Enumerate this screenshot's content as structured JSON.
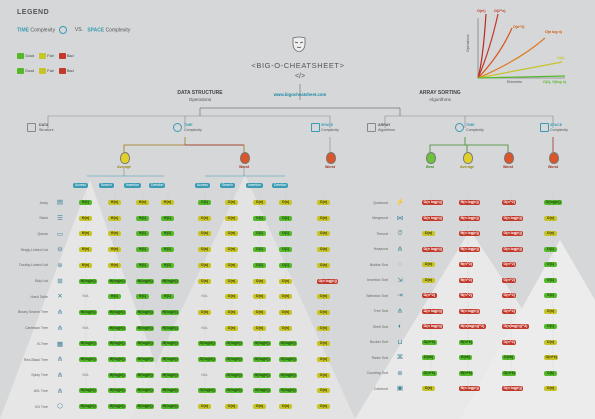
{
  "legend": {
    "title": "LEGEND",
    "time_word": "TIME",
    "time_rest": "Complexity",
    "vs": "VS.",
    "space_word": "SPACE",
    "space_rest": "Complexity",
    "row1": [
      {
        "label": "Good",
        "color": "#55b82b"
      },
      {
        "label": "Fair",
        "color": "#c7c42a"
      },
      {
        "label": "Bad",
        "color": "#c0392b"
      }
    ],
    "row2": [
      {
        "label": "Good",
        "color": "#55b82b"
      },
      {
        "label": "Fair",
        "color": "#c7c42a"
      },
      {
        "label": "Bad",
        "color": "#c0392b"
      }
    ]
  },
  "header": {
    "title": "<BIG-O-CHEATSHEET>",
    "code_icon": "</>",
    "url": "www.bigocheatsheet.com"
  },
  "graph": {
    "ylabel": "Operations",
    "xlabel": "Elements",
    "curves": [
      {
        "label": "O(n!)",
        "color": "#c0392b"
      },
      {
        "label": "O(2^n)",
        "color": "#c0392b"
      },
      {
        "label": "O(n^2)",
        "color": "#d35400"
      },
      {
        "label": "O(n log n)",
        "color": "#d35400"
      },
      {
        "label": "O(n)",
        "color": "#c7c42a"
      },
      {
        "label": "O(1), O(log n)",
        "color": "#55b82b"
      }
    ]
  },
  "left": {
    "title": "DATA STRUCTURE",
    "subtitle": "Operations",
    "data_label": "DATA",
    "data_sub": "Structure",
    "time_label": "TIME",
    "time_sub": "Complexity",
    "space_label": "SPACE",
    "space_sub": "Complexity",
    "average": "Average",
    "worst_time": "Worst",
    "worst_space": "Worst",
    "ops_avg": [
      "Access",
      "Search",
      "Insertion",
      "Deletion"
    ],
    "ops_worst": [
      "Access",
      "Search",
      "Insertion",
      "Deletion"
    ],
    "rows": [
      {
        "name": "Array",
        "icon": "array-icon",
        "cells": [
          "G:Θ(1)",
          "F:Θ(n)",
          "F:Θ(n)",
          "F:Θ(n)",
          "G:O(1)",
          "F:O(n)",
          "F:O(n)",
          "F:O(n)",
          "F:O(n)"
        ]
      },
      {
        "name": "Stack",
        "icon": "stack-icon",
        "cells": [
          "F:Θ(n)",
          "F:Θ(n)",
          "G:Θ(1)",
          "G:Θ(1)",
          "F:O(n)",
          "F:O(n)",
          "G:O(1)",
          "G:O(1)",
          "F:O(n)"
        ]
      },
      {
        "name": "Queue",
        "icon": "queue-icon",
        "cells": [
          "F:Θ(n)",
          "F:Θ(n)",
          "G:Θ(1)",
          "G:Θ(1)",
          "F:O(n)",
          "F:O(n)",
          "G:O(1)",
          "G:O(1)",
          "F:O(n)"
        ]
      },
      {
        "name": "Singly-Linked List",
        "icon": "singly-linked-list-icon",
        "cells": [
          "F:Θ(n)",
          "F:Θ(n)",
          "G:Θ(1)",
          "G:Θ(1)",
          "F:O(n)",
          "F:O(n)",
          "G:O(1)",
          "G:O(1)",
          "F:O(n)"
        ]
      },
      {
        "name": "Doubly-Linked List",
        "icon": "doubly-linked-list-icon",
        "cells": [
          "F:Θ(n)",
          "F:Θ(n)",
          "G:Θ(1)",
          "G:Θ(1)",
          "F:O(n)",
          "F:O(n)",
          "G:O(1)",
          "G:O(1)",
          "F:O(n)"
        ]
      },
      {
        "name": "Skip List",
        "icon": "skip-list-icon",
        "cells": [
          "G:Θ(log(n))",
          "G:Θ(log(n))",
          "G:Θ(log(n))",
          "G:Θ(log(n))",
          "F:O(n)",
          "F:O(n)",
          "F:O(n)",
          "F:O(n)",
          "R:O(n log(n))"
        ]
      },
      {
        "name": "Hash Table",
        "icon": "hash-table-icon",
        "cells": [
          "N:N/A",
          "G:Θ(1)",
          "G:Θ(1)",
          "G:Θ(1)",
          "N:N/A",
          "F:O(n)",
          "F:O(n)",
          "F:O(n)",
          "F:O(n)"
        ]
      },
      {
        "name": "Binary Search Tree",
        "icon": "binary-search-tree-icon",
        "cells": [
          "G:Θ(log(n))",
          "G:Θ(log(n))",
          "G:Θ(log(n))",
          "G:Θ(log(n))",
          "F:O(n)",
          "F:O(n)",
          "F:O(n)",
          "F:O(n)",
          "F:O(n)"
        ]
      },
      {
        "name": "Cartesian Tree",
        "icon": "cartesian-tree-icon",
        "cells": [
          "N:N/A",
          "G:Θ(log(n))",
          "G:Θ(log(n))",
          "G:Θ(log(n))",
          "N:N/A",
          "F:O(n)",
          "F:O(n)",
          "F:O(n)",
          "F:O(n)"
        ]
      },
      {
        "name": "B-Tree",
        "icon": "b-tree-icon",
        "cells": [
          "G:Θ(log(n))",
          "G:Θ(log(n))",
          "G:Θ(log(n))",
          "G:Θ(log(n))",
          "G:O(log(n))",
          "G:O(log(n))",
          "G:O(log(n))",
          "G:O(log(n))",
          "F:O(n)"
        ]
      },
      {
        "name": "Red-Black Tree",
        "icon": "red-black-tree-icon",
        "cells": [
          "G:Θ(log(n))",
          "G:Θ(log(n))",
          "G:Θ(log(n))",
          "G:Θ(log(n))",
          "G:O(log(n))",
          "G:O(log(n))",
          "G:O(log(n))",
          "G:O(log(n))",
          "F:O(n)"
        ]
      },
      {
        "name": "Splay Tree",
        "icon": "splay-tree-icon",
        "cells": [
          "N:N/A",
          "G:Θ(log(n))",
          "G:Θ(log(n))",
          "G:Θ(log(n))",
          "N:N/A",
          "G:O(log(n))",
          "G:O(log(n))",
          "G:O(log(n))",
          "F:O(n)"
        ]
      },
      {
        "name": "AVL Tree",
        "icon": "avl-tree-icon",
        "cells": [
          "G:Θ(log(n))",
          "G:Θ(log(n))",
          "G:Θ(log(n))",
          "G:Θ(log(n))",
          "G:O(log(n))",
          "G:O(log(n))",
          "G:O(log(n))",
          "G:O(log(n))",
          "F:O(n)"
        ]
      },
      {
        "name": "KD Tree",
        "icon": "kd-tree-icon",
        "cells": [
          "G:Θ(log(n))",
          "G:Θ(log(n))",
          "G:Θ(log(n))",
          "G:Θ(log(n))",
          "F:O(n)",
          "F:O(n)",
          "F:O(n)",
          "F:O(n)",
          "F:O(n)"
        ]
      }
    ]
  },
  "right": {
    "title": "ARRAY SORTING",
    "subtitle": "Algorithms",
    "algo_label": "ARRAY",
    "algo_sub": "Algorithms",
    "time_label": "TIME",
    "time_sub": "Complexity",
    "space_label": "SPACE",
    "space_sub": "Complexity",
    "best": "Best",
    "average": "Average",
    "worst_time": "Worst",
    "worst_space": "Worst",
    "rows": [
      {
        "name": "Quicksort",
        "icon": "quicksort-icon",
        "cells": [
          "R:Ω(n log(n))",
          "R:Θ(n log(n))",
          "R:O(n^2)",
          "G:O(log(n))"
        ]
      },
      {
        "name": "Mergesort",
        "icon": "mergesort-icon",
        "cells": [
          "R:Ω(n log(n))",
          "R:Θ(n log(n))",
          "R:O(n log(n))",
          "F:O(n)"
        ]
      },
      {
        "name": "Timsort",
        "icon": "timsort-icon",
        "cells": [
          "F:Ω(n)",
          "R:Θ(n log(n))",
          "R:O(n log(n))",
          "F:O(n)"
        ]
      },
      {
        "name": "Heapsort",
        "icon": "heapsort-icon",
        "cells": [
          "R:Ω(n log(n))",
          "R:Θ(n log(n))",
          "R:O(n log(n))",
          "G:O(1)"
        ]
      },
      {
        "name": "Bubble Sort",
        "icon": "bubble-sort-icon",
        "cells": [
          "F:Ω(n)",
          "R:Θ(n^2)",
          "R:O(n^2)",
          "G:O(1)"
        ]
      },
      {
        "name": "Insertion Sort",
        "icon": "insertion-sort-icon",
        "cells": [
          "F:Ω(n)",
          "R:Θ(n^2)",
          "R:O(n^2)",
          "G:O(1)"
        ]
      },
      {
        "name": "Selection Sort",
        "icon": "selection-sort-icon",
        "cells": [
          "R:Ω(n^2)",
          "R:Θ(n^2)",
          "R:O(n^2)",
          "G:O(1)"
        ]
      },
      {
        "name": "Tree Sort",
        "icon": "tree-sort-icon",
        "cells": [
          "R:Ω(n log(n))",
          "R:Θ(n log(n))",
          "R:O(n^2)",
          "F:O(n)"
        ]
      },
      {
        "name": "Shell Sort",
        "icon": "shell-sort-icon",
        "cells": [
          "R:Ω(n log(n))",
          "R:Θ(n(log(n))^2)",
          "R:O(n(log(n))^2)",
          "G:O(1)"
        ]
      },
      {
        "name": "Bucket Sort",
        "icon": "bucket-sort-icon",
        "cells": [
          "G:Ω(n+k)",
          "G:Θ(n+k)",
          "R:O(n^2)",
          "F:O(n)"
        ]
      },
      {
        "name": "Radix Sort",
        "icon": "radix-sort-icon",
        "cells": [
          "G:Ω(nk)",
          "G:Θ(nk)",
          "G:O(nk)",
          "F:O(n+k)"
        ]
      },
      {
        "name": "Counting Sort",
        "icon": "counting-sort-icon",
        "cells": [
          "G:Ω(n+k)",
          "G:Θ(n+k)",
          "G:O(n+k)",
          "G:O(k)"
        ]
      },
      {
        "name": "Cubesort",
        "icon": "cubesort-icon",
        "cells": [
          "F:Ω(n)",
          "R:Θ(n log(n))",
          "R:O(n log(n))",
          "F:O(n)"
        ]
      }
    ]
  },
  "colors": {
    "good": "#55b82b",
    "fair": "#c7c42a",
    "bad": "#c0392b",
    "na": "#9a9a9a",
    "teal": "#3a9bb3",
    "darkred": "#b03a2e"
  }
}
